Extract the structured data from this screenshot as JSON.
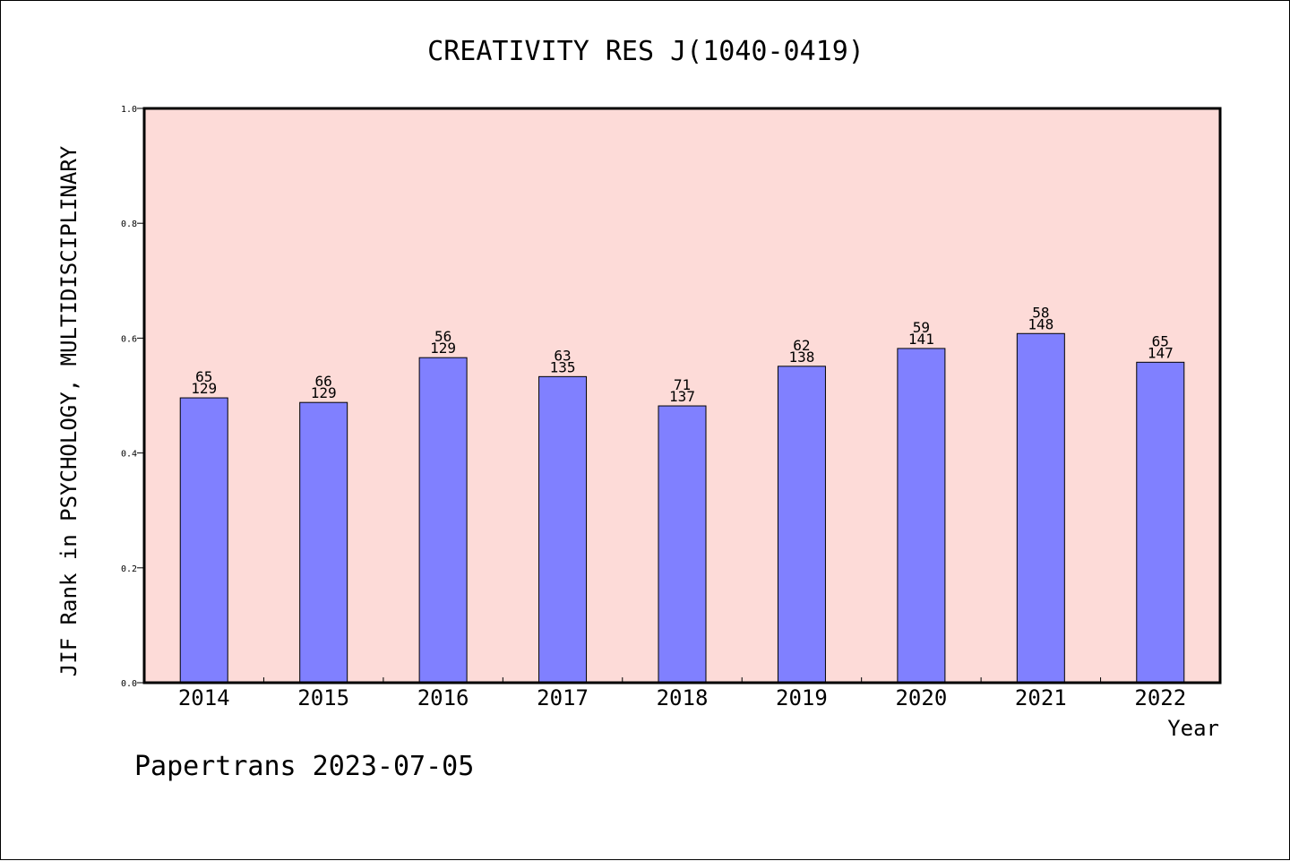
{
  "chart_data": {
    "type": "bar",
    "title": "CREATIVITY RES J(1040-0419)",
    "xlabel": "Year",
    "ylabel": "JIF Rank in PSYCHOLOGY, MULTIDISCIPLINARY",
    "ylim": [
      0,
      1.0
    ],
    "yticks": [
      "0.0",
      "0.2",
      "0.4",
      "0.6",
      "0.8",
      "1.0"
    ],
    "categories": [
      "2014",
      "2015",
      "2016",
      "2017",
      "2018",
      "2019",
      "2020",
      "2021",
      "2022"
    ],
    "values": [
      0.496,
      0.488,
      0.566,
      0.533,
      0.482,
      0.551,
      0.582,
      0.608,
      0.558
    ],
    "rank": [
      "65",
      "66",
      "56",
      "63",
      "71",
      "62",
      "59",
      "58",
      "65"
    ],
    "total": [
      "129",
      "129",
      "129",
      "135",
      "137",
      "138",
      "141",
      "148",
      "147"
    ],
    "bar_color": "#8080ff",
    "plot_background": "#fddbd8",
    "grid": false,
    "footer": "Papertrans 2023-07-05"
  }
}
